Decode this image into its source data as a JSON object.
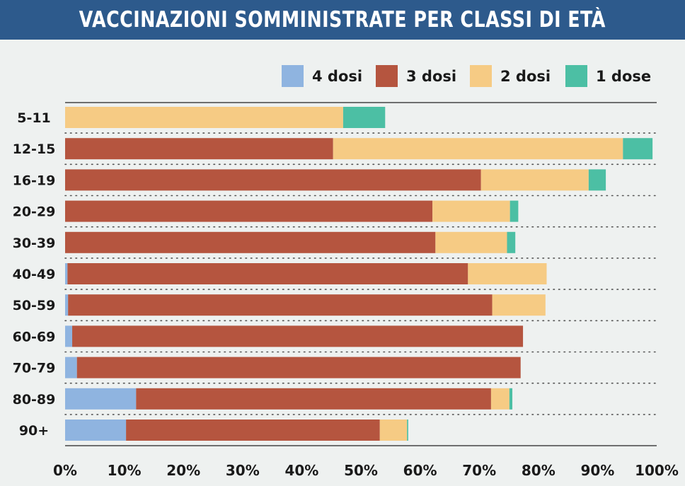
{
  "chart_data": {
    "type": "bar",
    "orientation": "horizontal",
    "stacked": true,
    "title": "VACCINAZIONI SOMMINISTRATE PER CLASSI DI ETÀ",
    "categories": [
      "5-11",
      "12-15",
      "16-19",
      "20-29",
      "30-39",
      "40-49",
      "50-59",
      "60-69",
      "70-79",
      "80-89",
      "90+"
    ],
    "series": [
      {
        "name": "4 dosi",
        "color": "#8fb4e0",
        "values": [
          0,
          0,
          0,
          0,
          0,
          0.4,
          0.5,
          1.2,
          2.0,
          12.0,
          10.3
        ]
      },
      {
        "name": "3 dosi",
        "color": "#b5553f",
        "values": [
          0,
          45.3,
          70.3,
          62.1,
          62.6,
          67.7,
          71.7,
          76.2,
          75.0,
          60.0,
          42.9
        ]
      },
      {
        "name": "2 dosi",
        "color": "#f6cb84",
        "values": [
          47.0,
          49.0,
          18.2,
          13.1,
          12.1,
          13.3,
          9.0,
          0,
          0,
          3.1,
          4.6
        ]
      },
      {
        "name": "1 dose",
        "color": "#4cbfa4",
        "values": [
          7.1,
          5.0,
          2.9,
          1.4,
          1.4,
          0,
          0,
          0,
          0,
          0.5,
          0.2
        ]
      }
    ],
    "xlim": [
      0,
      100
    ],
    "xticks": [
      "0%",
      "10%",
      "20%",
      "30%",
      "40%",
      "50%",
      "60%",
      "70%",
      "80%",
      "90%",
      "100%"
    ],
    "legend_position": "top-right",
    "grid": "dotted horizontal separators"
  }
}
